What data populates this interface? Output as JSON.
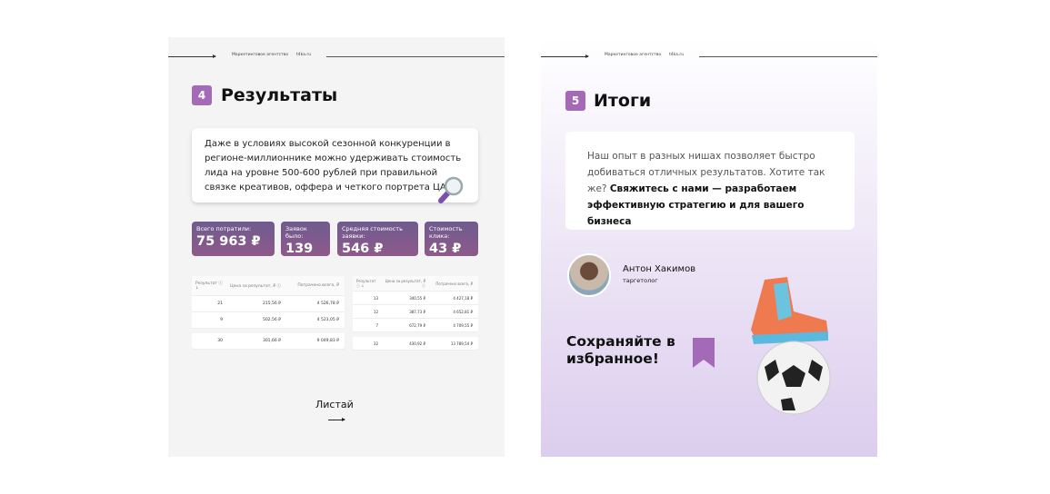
{
  "header": {
    "agency": "Маркетинговое агентство",
    "site": "t4ka.ru"
  },
  "slide4": {
    "number": "4",
    "title": "Результаты",
    "text": "Даже в условиях высокой сезонной конкуренции в регионе-миллионнике можно удерживать стоимость лида на уровне 500-600 рублей при правильной связке креативов, оффера и четкого портрета ЦА.",
    "stats": [
      {
        "label": "Всего потратили:",
        "value": "75 963 ₽"
      },
      {
        "label": "Заявок было:",
        "value": "139"
      },
      {
        "label": "Средняя стоимость заявки:",
        "value": "546 ₽"
      },
      {
        "label": "Стоимость клика:",
        "value": "43 ₽"
      }
    ],
    "table1": {
      "headers": [
        "Результат ⓘ ↓",
        "Цена за результат, ₽ ⓘ",
        "Потрачено всего, ₽"
      ],
      "rows": [
        [
          "21",
          "215,56 ₽",
          "4 526,78 ₽"
        ],
        [
          "9",
          "502,56 ₽",
          "4 523,05 ₽"
        ]
      ],
      "total": [
        "30",
        "301,66 ₽",
        "9 049,83 ₽"
      ]
    },
    "table2": {
      "headers": [
        "Результат ⓘ ↓",
        "Цена за результат, ₽ ⓘ",
        "Потрачено всего, ₽"
      ],
      "rows": [
        [
          "13",
          "340,55 ₽",
          "4 427,18 ₽"
        ],
        [
          "12",
          "387,73 ₽",
          "4 652,81 ₽"
        ],
        [
          "7",
          "672,79 ₽",
          "4 709,55 ₽"
        ]
      ],
      "total": [
        "32",
        "430,92 ₽",
        "13 789,54 ₽"
      ]
    },
    "next": "Листай"
  },
  "slide5": {
    "number": "5",
    "title": "Итоги",
    "text_regular": "Наш опыт в разных нишах позволяет быстро добиваться отличных результатов. Хотите так же?",
    "text_bold": "Свяжитесь с нами — разработаем эффективную стратегию и для вашего бизнеса",
    "person": {
      "name": "Антон Хакимов",
      "role": "таргетолог"
    },
    "save": "Сохраняйте в избранное!"
  },
  "colors": {
    "accent": "#a46ab8",
    "stat_bg": "#7a5b8d"
  }
}
